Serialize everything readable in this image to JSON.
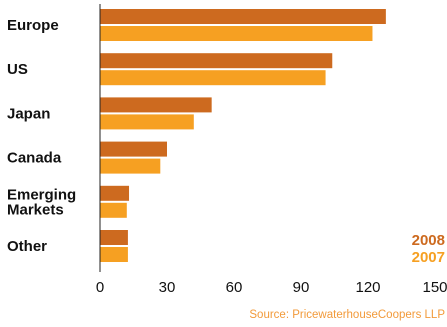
{
  "chart_data": {
    "type": "bar",
    "orientation": "horizontal",
    "categories": [
      "Europe",
      "US",
      "Japan",
      "Canada",
      "Emerging Markets",
      "Other"
    ],
    "category_lines": [
      [
        "Europe"
      ],
      [
        "US"
      ],
      [
        "Japan"
      ],
      [
        "Canada"
      ],
      [
        "Emerging",
        "Markets"
      ],
      [
        "Other"
      ]
    ],
    "series": [
      {
        "name": "2008",
        "color": "#cd6a1f",
        "values": [
          128,
          104,
          50,
          30,
          13,
          12.5
        ]
      },
      {
        "name": "2007",
        "color": "#f6a022",
        "values": [
          122,
          101,
          42,
          27,
          12,
          12.5
        ]
      }
    ],
    "xlim": [
      0,
      150
    ],
    "xticks": [
      0,
      30,
      60,
      90,
      120,
      150
    ],
    "grid": false,
    "legend_position": "bottom-right",
    "source": "Source: PricewaterhouseCoopers LLP"
  }
}
